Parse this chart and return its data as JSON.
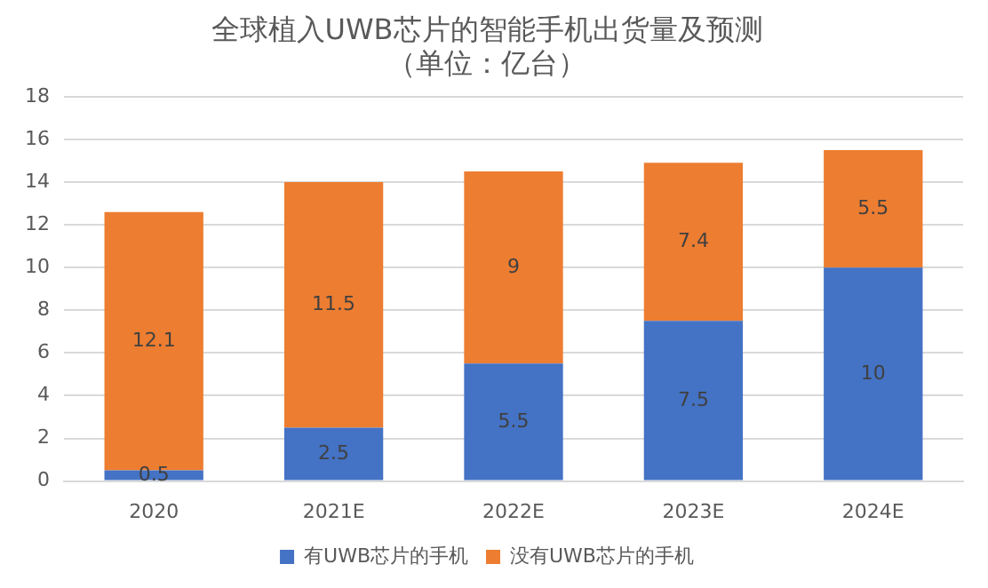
{
  "chart_data": {
    "type": "bar",
    "title": "全球植入UWB芯片的智能手机出货量及预测",
    "subtitle": "（单位：亿台）",
    "categories": [
      "2020",
      "2021E",
      "2022E",
      "2023E",
      "2024E"
    ],
    "series": [
      {
        "name": "有UWB芯片的手机",
        "color": "#4472c4",
        "values": [
          0.5,
          2.5,
          5.5,
          7.5,
          10
        ]
      },
      {
        "name": "没有UWB芯片的手机",
        "color": "#ed7d31",
        "values": [
          12.1,
          11.5,
          9,
          7.4,
          5.5
        ]
      }
    ],
    "stacked": true,
    "ylim": [
      0,
      18
    ],
    "yticks": [
      0,
      2,
      4,
      6,
      8,
      10,
      12,
      14,
      16,
      18
    ],
    "grid": "y",
    "legend": "bottom",
    "data_labels": true
  }
}
